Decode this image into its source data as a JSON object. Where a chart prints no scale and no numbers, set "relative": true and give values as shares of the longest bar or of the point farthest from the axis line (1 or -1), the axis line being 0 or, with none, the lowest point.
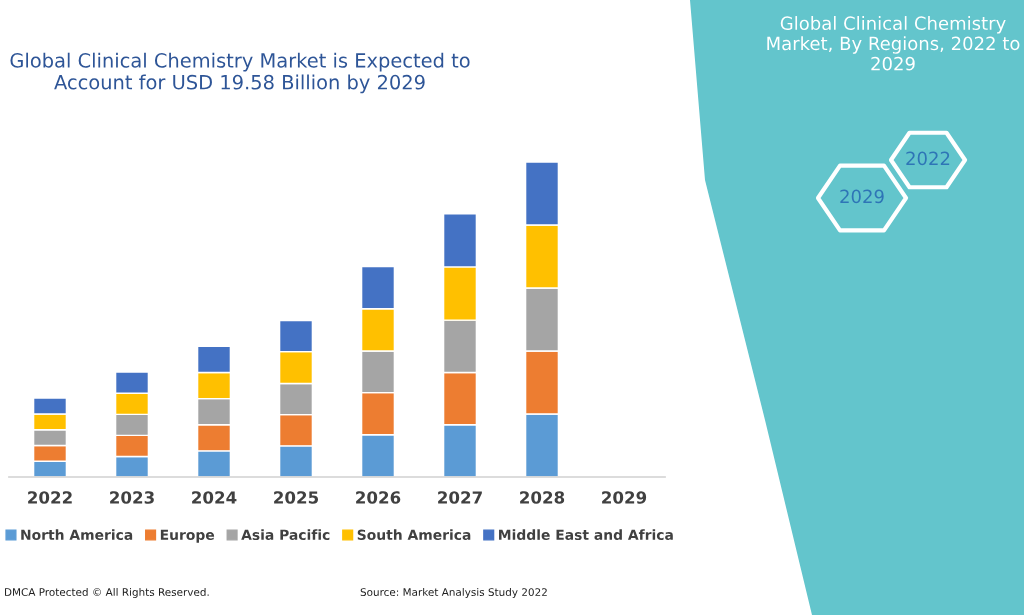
{
  "chart_data": {
    "type": "bar",
    "title": "Global Clinical Chemistry Market is Expected to Account for USD 19.58 Billion by 2029",
    "categories": [
      "2022",
      "2023",
      "2024",
      "2025",
      "2026",
      "2027",
      "2028",
      "2029"
    ],
    "stacked": true,
    "relative": true,
    "grid": false,
    "legend": "bottom",
    "series": [
      {
        "name": "North America",
        "color": "#5b9bd5",
        "values": [
          0.05,
          0.065,
          0.083,
          0.099,
          0.134,
          0.166,
          0.2,
          null
        ]
      },
      {
        "name": "Europe",
        "color": "#ed7d31",
        "values": [
          0.05,
          0.067,
          0.083,
          0.099,
          0.134,
          0.166,
          0.2,
          null
        ]
      },
      {
        "name": "Asia Pacific",
        "color": "#a5a5a5",
        "values": [
          0.05,
          0.067,
          0.083,
          0.099,
          0.132,
          0.166,
          0.2,
          null
        ]
      },
      {
        "name": "South America",
        "color": "#ffc000",
        "values": [
          0.05,
          0.067,
          0.083,
          0.101,
          0.134,
          0.169,
          0.2,
          null
        ]
      },
      {
        "name": "Middle East and Africa",
        "color": "#4472c4",
        "values": [
          0.051,
          0.067,
          0.083,
          0.099,
          0.134,
          0.169,
          0.2,
          null
        ]
      }
    ],
    "annotations": [
      "Global Clinical Chemistry Market, By Regions, 2022 to 2029",
      "2022",
      "2029",
      "DMCA Protected © All Rights Reserved.",
      "Source: Market Analysis Study 2022"
    ]
  }
}
